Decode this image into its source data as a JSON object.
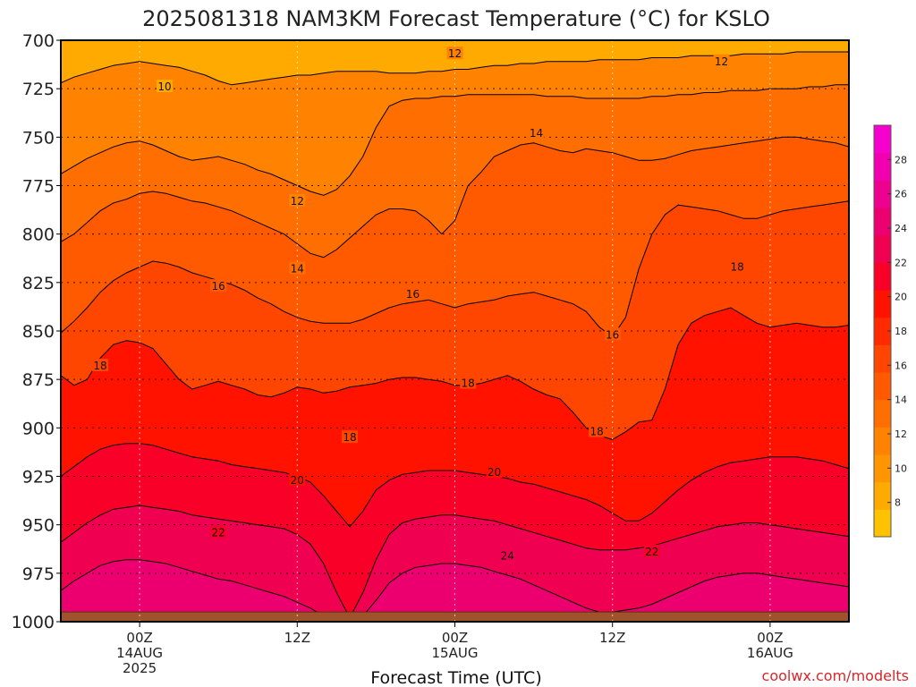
{
  "chart_data": {
    "type": "heatmap",
    "title": "2025081318 NAM3KM Forecast Temperature (°C) for KSLO",
    "xlabel": "Forecast Time (UTC)",
    "credit": "coolwx.com/modelts",
    "y_ticks": [
      700,
      725,
      750,
      775,
      800,
      825,
      850,
      875,
      900,
      925,
      950,
      975,
      1000
    ],
    "ylim": [
      1000,
      700
    ],
    "x_ticks": [
      {
        "hour": 6,
        "lines": [
          "00Z",
          "14AUG",
          "2025"
        ]
      },
      {
        "hour": 18,
        "lines": [
          "12Z"
        ]
      },
      {
        "hour": 30,
        "lines": [
          "00Z",
          "15AUG"
        ]
      },
      {
        "hour": 42,
        "lines": [
          "12Z"
        ]
      },
      {
        "hour": 54,
        "lines": [
          "00Z",
          "16AUG"
        ]
      }
    ],
    "xlim": [
      0,
      60
    ],
    "grid": true,
    "surface_pressure_hpa": 995,
    "colorbar": {
      "ticks": [
        8,
        10,
        12,
        14,
        16,
        18,
        20,
        22,
        24,
        26,
        28
      ],
      "range": [
        6,
        30
      ],
      "colors": [
        "#ffc200",
        "#ffaa00",
        "#ff9500",
        "#ff8200",
        "#ff6e00",
        "#ff5a00",
        "#ff4600",
        "#ff2b00",
        "#ff1200",
        "#f80028",
        "#ef0050",
        "#ec0070",
        "#ee0090",
        "#f200b0",
        "#f500cd"
      ]
    },
    "series": [
      {
        "isotherm": 10,
        "pressure": [
          722,
          719,
          717,
          715,
          713,
          712,
          711,
          712,
          713,
          714,
          716,
          718,
          721,
          723,
          722,
          721,
          720,
          719,
          718,
          718,
          717,
          716,
          716,
          716,
          716,
          717,
          717,
          717,
          716,
          716,
          715,
          715,
          714,
          713,
          713,
          712,
          712,
          711,
          711,
          711,
          711,
          710,
          710,
          710,
          710,
          709,
          709,
          709,
          708,
          708,
          708,
          708,
          707,
          707,
          707,
          707,
          706,
          706,
          706,
          706,
          706
        ]
      },
      {
        "isotherm": 12,
        "pressure": [
          769,
          765,
          761,
          758,
          755,
          753,
          752,
          754,
          757,
          760,
          762,
          761,
          760,
          762,
          764,
          767,
          769,
          772,
          775,
          778,
          780,
          777,
          770,
          760,
          745,
          734,
          731,
          730,
          730,
          729,
          729,
          728,
          728,
          728,
          728,
          728,
          728,
          729,
          729,
          729,
          730,
          730,
          730,
          730,
          730,
          729,
          729,
          728,
          728,
          727,
          727,
          726,
          726,
          726,
          725,
          725,
          725,
          724,
          724,
          723,
          723
        ]
      },
      {
        "isotherm": 14,
        "pressure": [
          804,
          800,
          794,
          788,
          784,
          782,
          779,
          778,
          779,
          781,
          783,
          784,
          786,
          788,
          791,
          794,
          797,
          800,
          805,
          810,
          812,
          808,
          802,
          796,
          790,
          787,
          787,
          788,
          793,
          800,
          793,
          775,
          768,
          760,
          757,
          754,
          753,
          755,
          757,
          758,
          756,
          757,
          758,
          760,
          762,
          762,
          761,
          759,
          757,
          756,
          755,
          754,
          753,
          752,
          751,
          750,
          750,
          751,
          752,
          753,
          755
        ]
      },
      {
        "isotherm": 16,
        "pressure": [
          851,
          845,
          838,
          830,
          824,
          820,
          817,
          814,
          815,
          817,
          820,
          822,
          824,
          826,
          829,
          833,
          836,
          840,
          843,
          845,
          846,
          846,
          846,
          844,
          841,
          838,
          836,
          835,
          834,
          836,
          838,
          836,
          835,
          834,
          832,
          831,
          830,
          832,
          834,
          836,
          840,
          848,
          853,
          843,
          818,
          800,
          790,
          785,
          786,
          787,
          788,
          790,
          792,
          792,
          790,
          788,
          787,
          786,
          785,
          784,
          783
        ]
      },
      {
        "isotherm": 18,
        "pressure": [
          873,
          878,
          875,
          864,
          857,
          855,
          856,
          859,
          867,
          875,
          880,
          878,
          876,
          878,
          880,
          883,
          884,
          882,
          879,
          880,
          882,
          881,
          879,
          878,
          877,
          875,
          874,
          874,
          875,
          876,
          878,
          878,
          877,
          875,
          873,
          876,
          880,
          883,
          885,
          892,
          900,
          904,
          906,
          902,
          897,
          896,
          880,
          857,
          846,
          842,
          840,
          838,
          842,
          846,
          848,
          847,
          846,
          847,
          848,
          848,
          847
        ]
      },
      {
        "isotherm": 20,
        "pressure": [
          925,
          920,
          915,
          911,
          909,
          908,
          908,
          909,
          911,
          913,
          915,
          916,
          917,
          919,
          920,
          921,
          922,
          923,
          925,
          928,
          935,
          943,
          951,
          943,
          932,
          927,
          924,
          923,
          922,
          922,
          922,
          923,
          924,
          925,
          926,
          928,
          929,
          931,
          933,
          935,
          937,
          940,
          944,
          948,
          948,
          944,
          938,
          932,
          927,
          923,
          920,
          918,
          917,
          916,
          915,
          915,
          915,
          916,
          917,
          919,
          921
        ]
      },
      {
        "isotherm": 22,
        "pressure": [
          959,
          954,
          949,
          945,
          942,
          941,
          940,
          941,
          942,
          943,
          945,
          946,
          947,
          948,
          949,
          950,
          951,
          952,
          955,
          960,
          970,
          985,
          998,
          985,
          968,
          955,
          949,
          947,
          946,
          945,
          945,
          946,
          947,
          948,
          950,
          952,
          954,
          956,
          958,
          960,
          962,
          963,
          963,
          963,
          962,
          961,
          959,
          957,
          955,
          953,
          951,
          950,
          949,
          949,
          950,
          951,
          952,
          953,
          954,
          955,
          956
        ]
      },
      {
        "isotherm": 24,
        "pressure": [
          984,
          979,
          975,
          971,
          969,
          968,
          968,
          969,
          970,
          972,
          974,
          976,
          978,
          979,
          981,
          983,
          985,
          987,
          990,
          993,
          997,
          999,
          999,
          997,
          989,
          980,
          975,
          972,
          971,
          970,
          970,
          971,
          972,
          974,
          976,
          978,
          981,
          984,
          987,
          990,
          993,
          995,
          995,
          994,
          993,
          991,
          988,
          985,
          982,
          979,
          977,
          976,
          975,
          975,
          976,
          977,
          978,
          979,
          980,
          981,
          982
        ]
      }
    ],
    "contour_labels": [
      {
        "text": "10",
        "hour": 7.9,
        "pressure": 724
      },
      {
        "text": "12",
        "hour": 30.0,
        "pressure": 707
      },
      {
        "text": "12",
        "hour": 50.3,
        "pressure": 711
      },
      {
        "text": "12",
        "hour": 18.0,
        "pressure": 783
      },
      {
        "text": "14",
        "hour": 36.2,
        "pressure": 748
      },
      {
        "text": "14",
        "hour": 18.0,
        "pressure": 818
      },
      {
        "text": "16",
        "hour": 12.0,
        "pressure": 827
      },
      {
        "text": "16",
        "hour": 26.8,
        "pressure": 831
      },
      {
        "text": "16",
        "hour": 42.0,
        "pressure": 852
      },
      {
        "text": "18",
        "hour": 3.0,
        "pressure": 868
      },
      {
        "text": "18",
        "hour": 31.0,
        "pressure": 877
      },
      {
        "text": "18",
        "hour": 22.0,
        "pressure": 905
      },
      {
        "text": "18",
        "hour": 40.8,
        "pressure": 902
      },
      {
        "text": "18",
        "hour": 51.5,
        "pressure": 817
      },
      {
        "text": "20",
        "hour": 18.0,
        "pressure": 927
      },
      {
        "text": "20",
        "hour": 33.0,
        "pressure": 923
      },
      {
        "text": "22",
        "hour": 12.0,
        "pressure": 954
      },
      {
        "text": "22",
        "hour": 45.0,
        "pressure": 964
      },
      {
        "text": "24",
        "hour": 34.0,
        "pressure": 966
      }
    ]
  }
}
